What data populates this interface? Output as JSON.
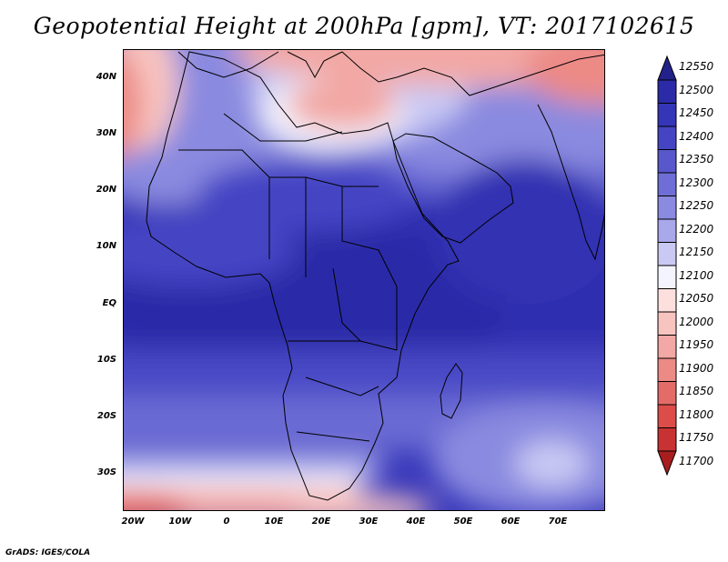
{
  "title": "Geopotential Height at 200hPa [gpm], VT: 2017102615",
  "footer": "GrADS: IGES/COLA",
  "map": {
    "lat_range": [
      -37,
      45
    ],
    "lon_range": [
      -22,
      80
    ],
    "lat_labels": [
      "40N",
      "30N",
      "20N",
      "10N",
      "EQ",
      "10S",
      "20S",
      "30S"
    ],
    "lat_values": [
      40,
      30,
      20,
      10,
      0,
      -10,
      -20,
      -30
    ],
    "lon_labels": [
      "20W",
      "10W",
      "0",
      "10E",
      "20E",
      "30E",
      "40E",
      "50E",
      "60E",
      "70E"
    ],
    "lon_values": [
      -20,
      -10,
      0,
      10,
      20,
      30,
      40,
      50,
      60,
      70
    ]
  },
  "colorbar": {
    "levels": [
      "12550",
      "12500",
      "12450",
      "12400",
      "12350",
      "12300",
      "12250",
      "12200",
      "12150",
      "12100",
      "12050",
      "12000",
      "11950",
      "11900",
      "11850",
      "11800",
      "11750",
      "11700"
    ],
    "colors": [
      "#22228a",
      "#2b2ba8",
      "#3535b8",
      "#4545c4",
      "#5858cc",
      "#6e6ed6",
      "#8a8ae0",
      "#a8a8ea",
      "#c9c9f4",
      "#f4f4ff",
      "#fde0de",
      "#f8c4c0",
      "#f2a8a4",
      "#ec8a86",
      "#e46c68",
      "#dc4c48",
      "#c83232",
      "#a81e1e"
    ]
  }
}
